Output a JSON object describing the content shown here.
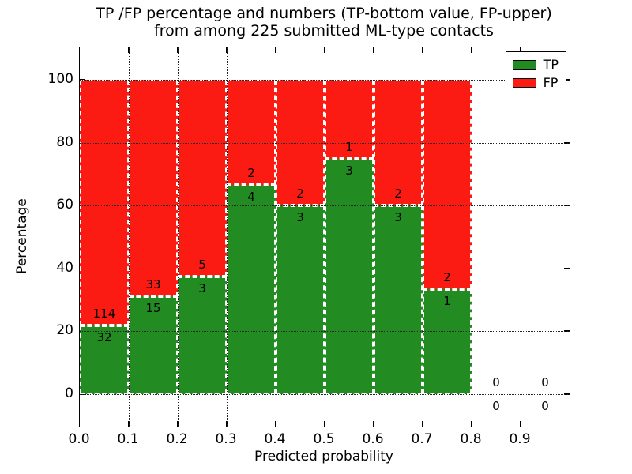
{
  "title": {
    "line1": "TP /FP percentage and numbers (TP-bottom value, FP-upper)",
    "line2": "from among 225 submitted ML-type contacts"
  },
  "chart_data": {
    "type": "bar",
    "stacked": true,
    "normalized": "percent (TP+FP = 100% per bin)",
    "title": "TP /FP percentage and numbers (TP-bottom value, FP-upper)\nfrom among 225 submitted ML-type contacts",
    "xlabel": "Predicted probability",
    "ylabel": "Percentage",
    "total_contacts": 225,
    "bin_starts": [
      0.0,
      0.1,
      0.2,
      0.3,
      0.4,
      0.5,
      0.6,
      0.7,
      0.8,
      0.9
    ],
    "bin_width": 0.1,
    "series": [
      {
        "name": "TP",
        "color": "#228b22",
        "counts": [
          32,
          15,
          3,
          4,
          3,
          3,
          3,
          1,
          0,
          0
        ]
      },
      {
        "name": "FP",
        "color": "#fb1b13",
        "counts": [
          114,
          33,
          5,
          2,
          2,
          1,
          2,
          2,
          0,
          0
        ]
      }
    ],
    "tp_percent": [
      21.9,
      31.2,
      37.5,
      66.7,
      60.0,
      75.0,
      60.0,
      33.3,
      0,
      0
    ],
    "x_ticks": [
      {
        "value": 0.0,
        "label": "0.0"
      },
      {
        "value": 0.1,
        "label": "0.1"
      },
      {
        "value": 0.2,
        "label": "0.2"
      },
      {
        "value": 0.3,
        "label": "0.3"
      },
      {
        "value": 0.4,
        "label": "0.4"
      },
      {
        "value": 0.5,
        "label": "0.5"
      },
      {
        "value": 0.6,
        "label": "0.6"
      },
      {
        "value": 0.7,
        "label": "0.7"
      },
      {
        "value": 0.8,
        "label": "0.8"
      },
      {
        "value": 0.9,
        "label": "0.9"
      }
    ],
    "y_ticks": [
      {
        "value": 0,
        "label": "0"
      },
      {
        "value": 20,
        "label": "20"
      },
      {
        "value": 40,
        "label": "40"
      },
      {
        "value": 60,
        "label": "60"
      },
      {
        "value": 80,
        "label": "80"
      },
      {
        "value": 100,
        "label": "100"
      }
    ],
    "xlim": [
      0.0,
      1.0
    ],
    "ylim_percent": [
      -10.3,
      110.6
    ],
    "grid": true,
    "grid_style": "dotted",
    "bar_edge_style": "dashed white",
    "legend": {
      "position": "upper right",
      "entries": [
        {
          "label": "TP",
          "color": "#228b22"
        },
        {
          "label": "FP",
          "color": "#fb1b13"
        }
      ]
    }
  }
}
